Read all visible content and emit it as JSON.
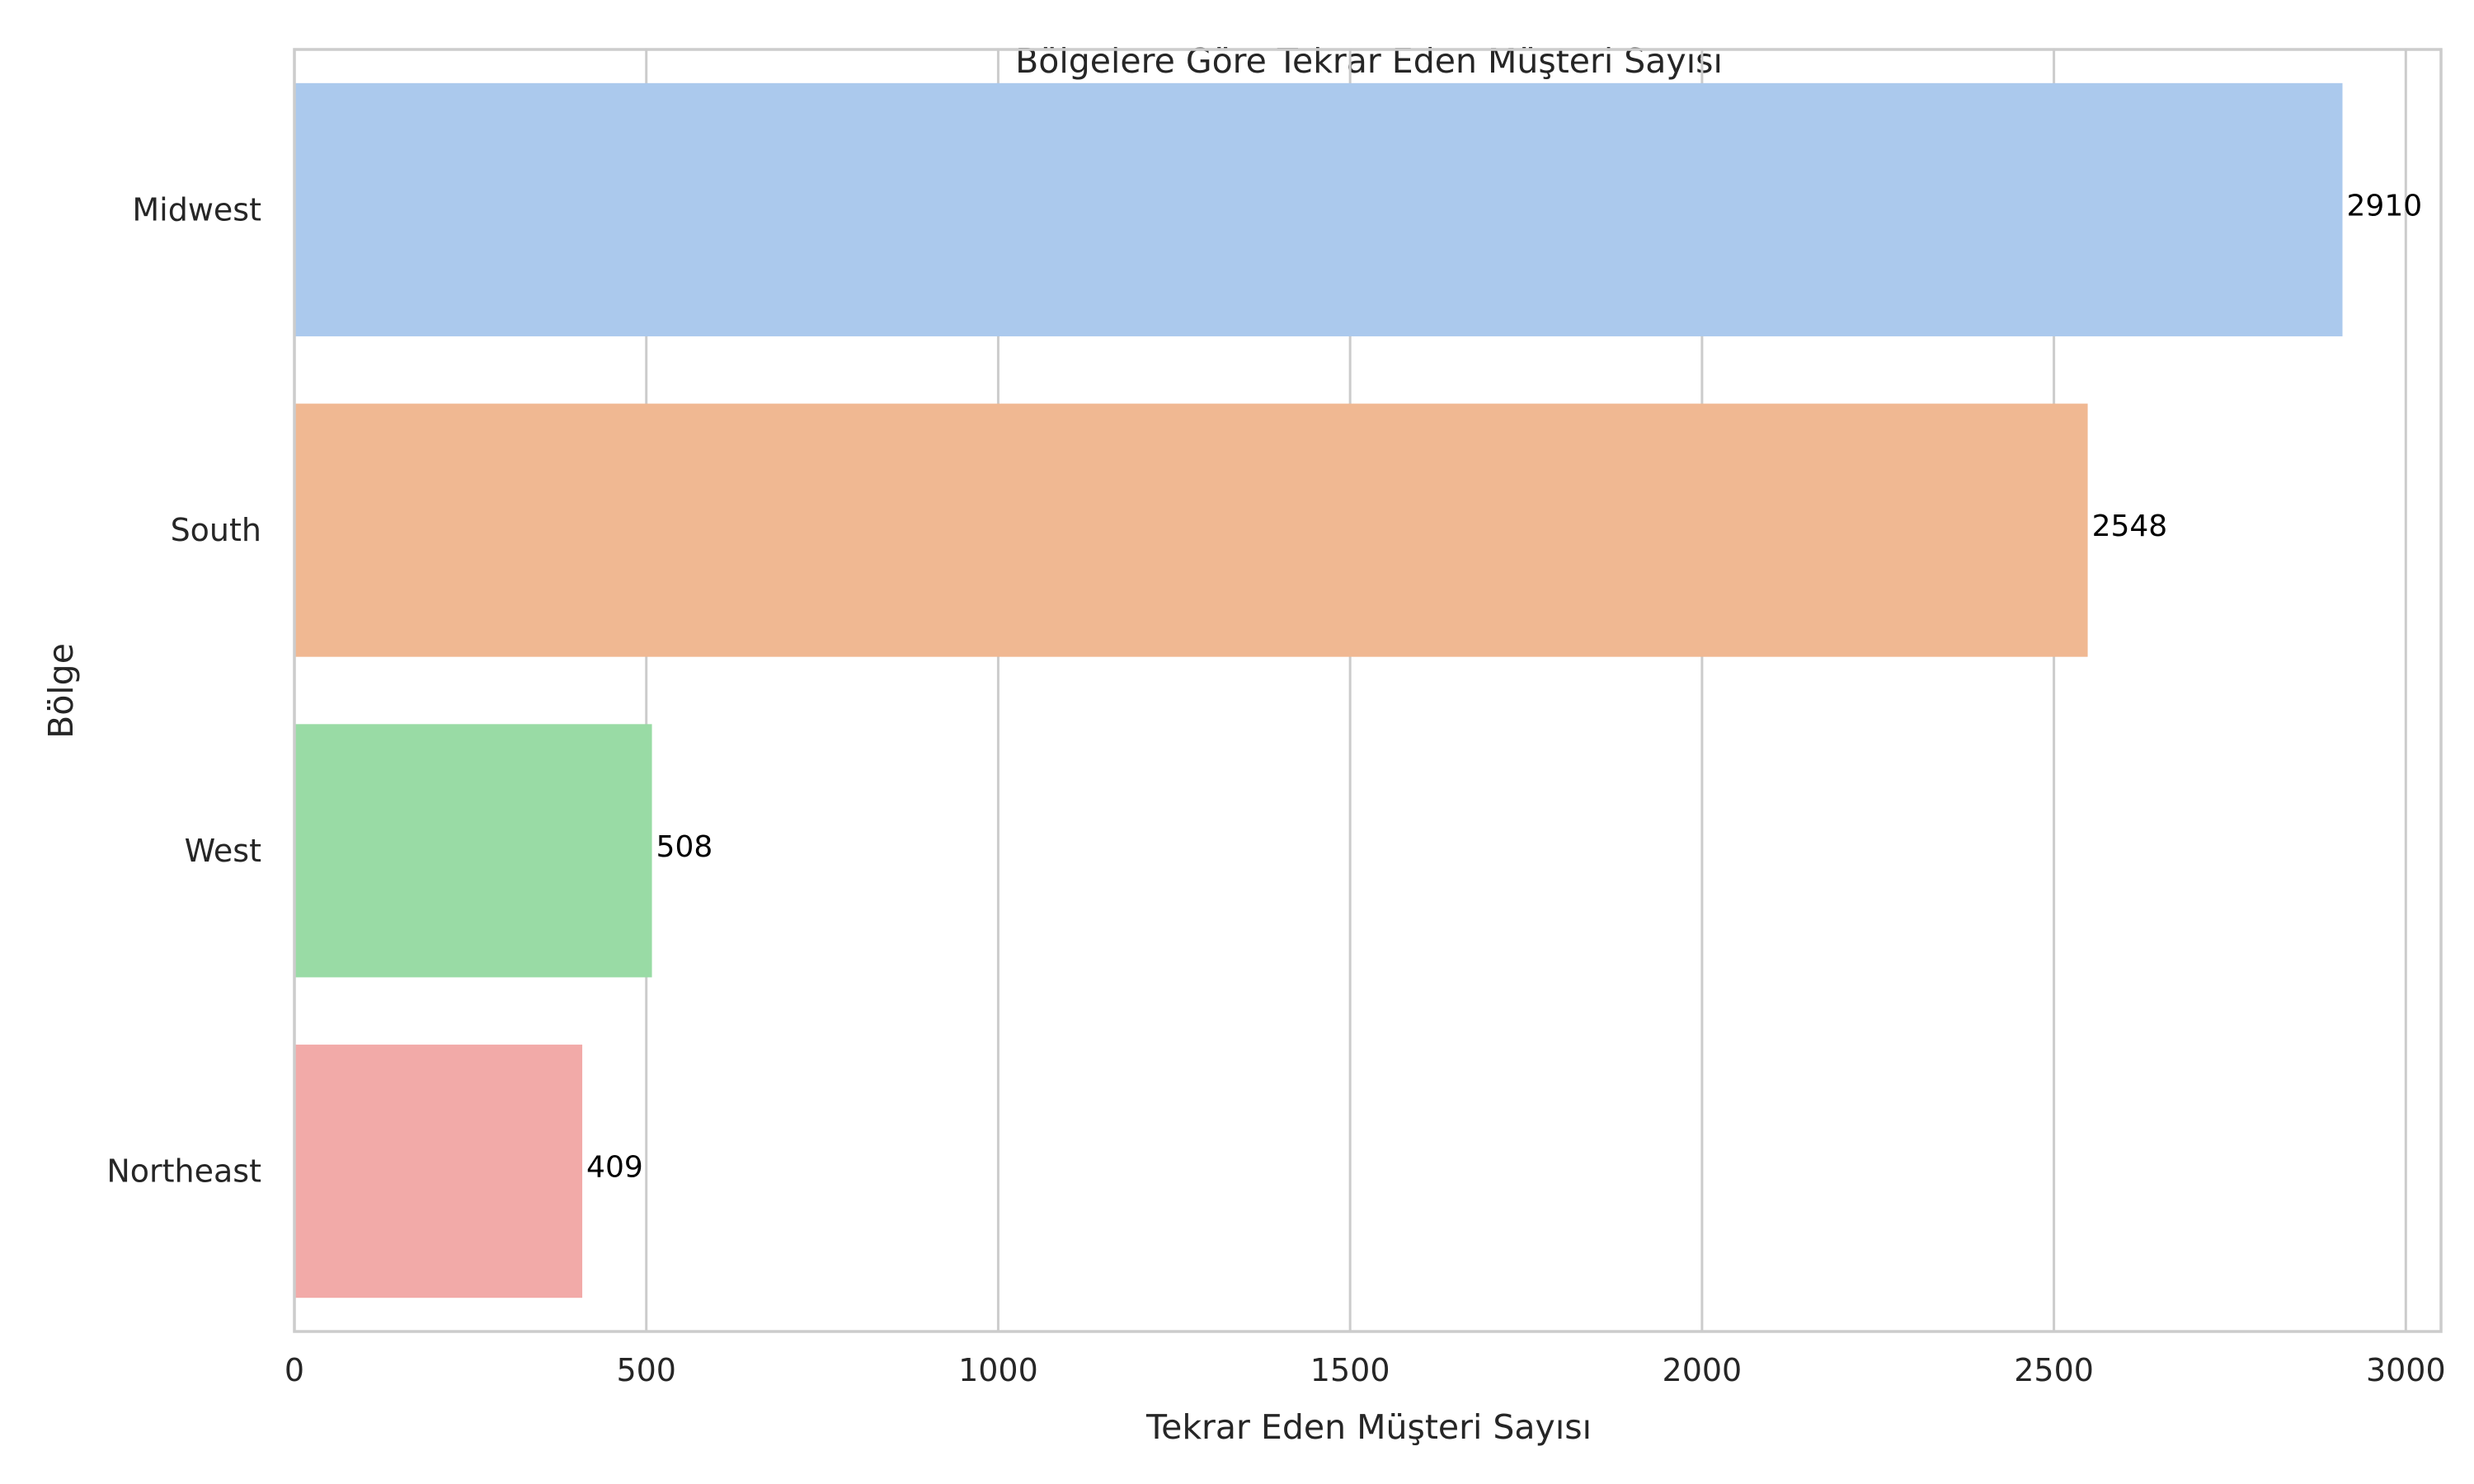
{
  "chart_data": {
    "type": "bar",
    "orientation": "horizontal",
    "title": "Bölgelere Göre Tekrar Eden Müşteri Sayısı",
    "xlabel": "Tekrar Eden Müşteri Sayısı",
    "ylabel": "Bölge",
    "categories": [
      "Midwest",
      "South",
      "West",
      "Northeast"
    ],
    "values": [
      2910,
      2548,
      508,
      409
    ],
    "data_labels": [
      "2910",
      "2548",
      "508",
      "409"
    ],
    "colors": [
      "#abc9ed",
      "#f0b892",
      "#99dba5",
      "#f2aaa8"
    ],
    "xlim": [
      0,
      3050
    ],
    "xticks": [
      0,
      500,
      1000,
      1500,
      2000,
      2500,
      3000
    ],
    "grid": true
  }
}
